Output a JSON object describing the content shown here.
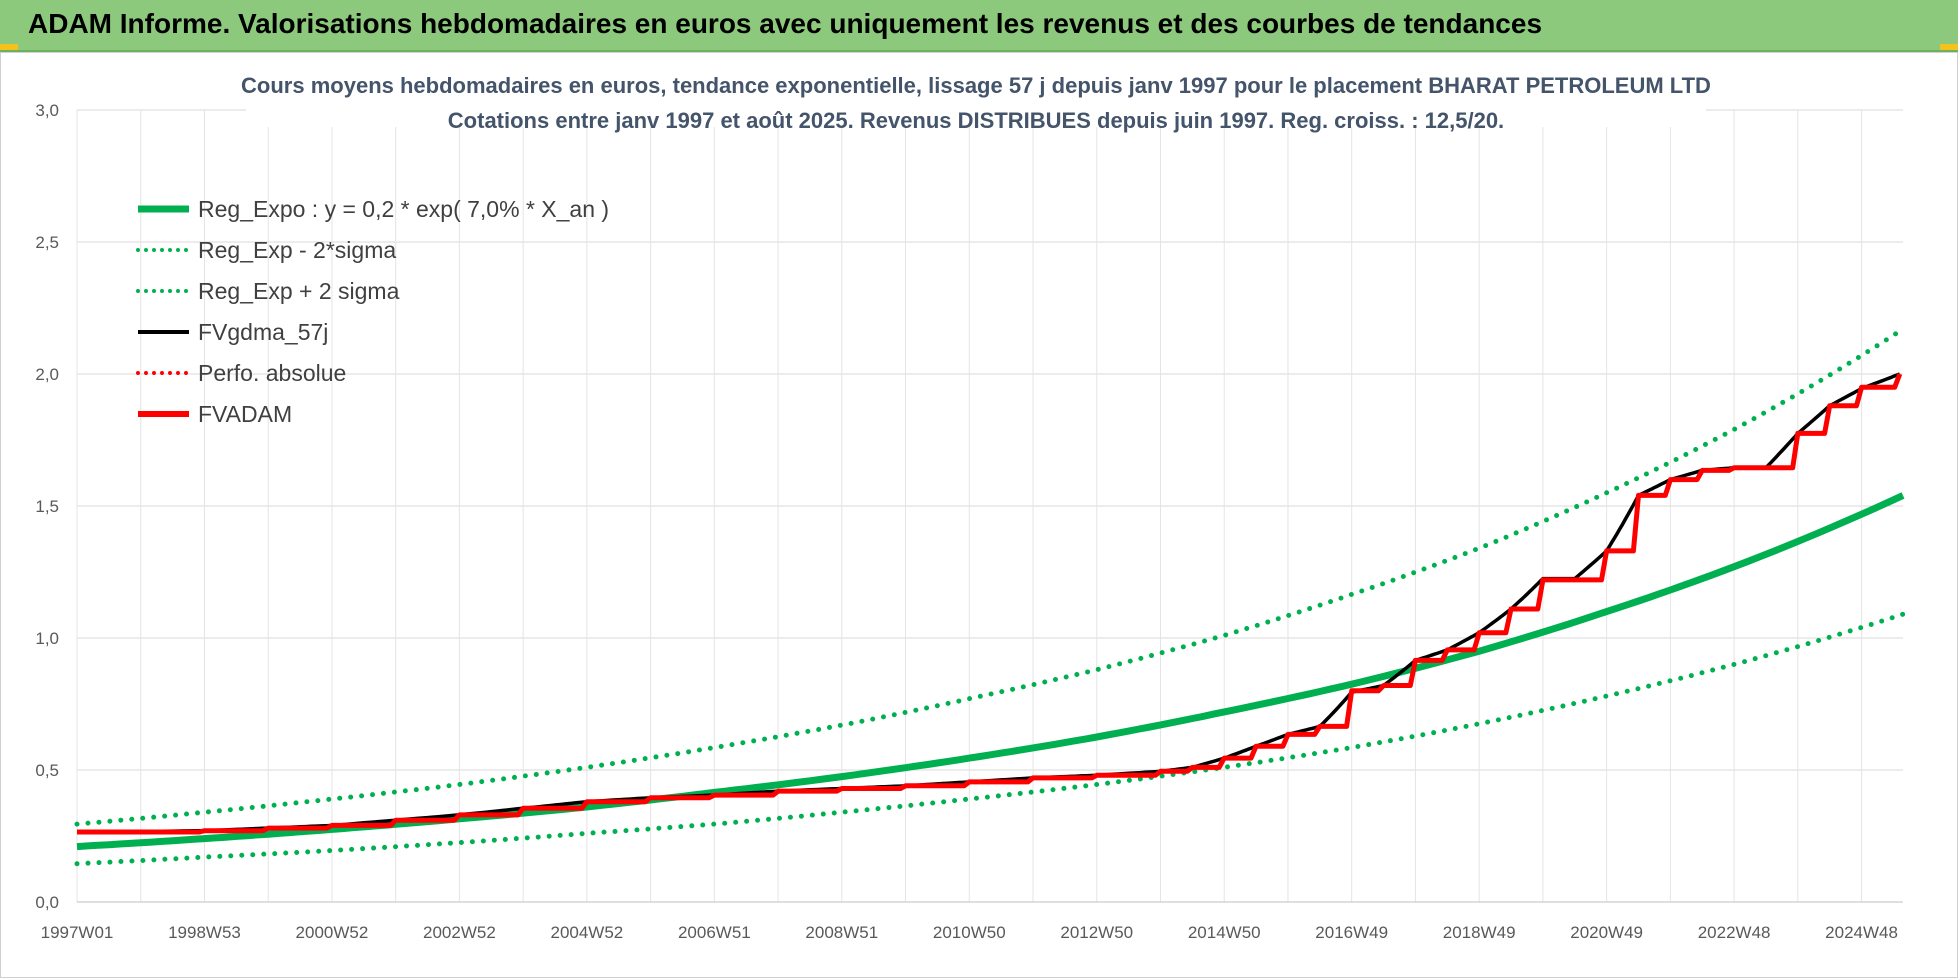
{
  "header": {
    "title": "ADAM Informe. Valorisations hebdomadaires en euros avec uniquement les revenus et des courbes de tendances"
  },
  "chart_data": {
    "type": "line",
    "title": "Cours moyens hebdomadaires en euros, tendance exponentielle, lissage 57 j depuis janv 1997  pour le placement BHARAT PETROLEUM LTD",
    "subtitle": "Cotations entre janv 1997 et août 2025.  Revenus DISTRIBUES depuis juin 1997.  Reg. croiss. : 12,5/20.",
    "xlabel": "",
    "ylabel": "",
    "x_range": [
      1997.0,
      2025.65
    ],
    "ylim": [
      0,
      3.0
    ],
    "y_ticks": [
      "0,0",
      "0,5",
      "1,0",
      "1,5",
      "2,0",
      "2,5",
      "3,0"
    ],
    "x_ticks": [
      {
        "label": "1997W01",
        "x": 1997.0
      },
      {
        "label": "1998W53",
        "x": 1999.0
      },
      {
        "label": "2000W52",
        "x": 2001.0
      },
      {
        "label": "2002W52",
        "x": 2003.0
      },
      {
        "label": "2004W52",
        "x": 2005.0
      },
      {
        "label": "2006W51",
        "x": 2007.0
      },
      {
        "label": "2008W51",
        "x": 2009.0
      },
      {
        "label": "2010W50",
        "x": 2011.0
      },
      {
        "label": "2012W50",
        "x": 2013.0
      },
      {
        "label": "2014W50",
        "x": 2015.0
      },
      {
        "label": "2016W49",
        "x": 2017.0
      },
      {
        "label": "2018W49",
        "x": 2019.0
      },
      {
        "label": "2020W49",
        "x": 2021.0
      },
      {
        "label": "2022W48",
        "x": 2023.0
      },
      {
        "label": "2024W48",
        "x": 2025.0
      }
    ],
    "grid": true,
    "legend_position": "top-left",
    "series": [
      {
        "name": "Reg_Expo : y = 0,2 * exp( 7,0% *  X_an )",
        "color": "#00b050",
        "style": "solid-thick",
        "x": [
          1997.0,
          1999.0,
          2001.0,
          2003.0,
          2005.0,
          2007.0,
          2009.0,
          2011.0,
          2013.0,
          2015.0,
          2017.0,
          2019.0,
          2021.0,
          2023.0,
          2025.65
        ],
        "y": [
          0.21,
          0.24,
          0.275,
          0.315,
          0.36,
          0.415,
          0.475,
          0.545,
          0.625,
          0.72,
          0.825,
          0.95,
          1.1,
          1.27,
          1.54
        ]
      },
      {
        "name": "Reg_Exp - 2*sigma",
        "color": "#00b050",
        "style": "dotted",
        "x": [
          1997.0,
          1999.0,
          2001.0,
          2003.0,
          2005.0,
          2007.0,
          2009.0,
          2011.0,
          2013.0,
          2015.0,
          2017.0,
          2019.0,
          2021.0,
          2023.0,
          2025.65
        ],
        "y": [
          0.145,
          0.17,
          0.195,
          0.225,
          0.26,
          0.295,
          0.34,
          0.39,
          0.445,
          0.51,
          0.585,
          0.675,
          0.78,
          0.9,
          1.09
        ]
      },
      {
        "name": "Reg_Exp + 2 sigma",
        "color": "#00b050",
        "style": "dotted",
        "x": [
          1997.0,
          1999.0,
          2001.0,
          2003.0,
          2005.0,
          2007.0,
          2009.0,
          2011.0,
          2013.0,
          2015.0,
          2017.0,
          2019.0,
          2021.0,
          2023.0,
          2025.65
        ],
        "y": [
          0.295,
          0.34,
          0.39,
          0.445,
          0.51,
          0.585,
          0.67,
          0.77,
          0.88,
          1.01,
          1.165,
          1.34,
          1.55,
          1.79,
          2.17
        ]
      },
      {
        "name": "FVgdma_57j",
        "color": "#000000",
        "style": "solid",
        "x": [
          1997.0,
          1999.0,
          2000.0,
          2001.0,
          2002.0,
          2003.0,
          2004.0,
          2005.0,
          2006.0,
          2007.0,
          2008.0,
          2009.0,
          2010.0,
          2011.0,
          2012.0,
          2013.0,
          2014.0,
          2014.5,
          2015.0,
          2015.5,
          2016.0,
          2016.5,
          2017.0,
          2017.5,
          2018.0,
          2018.5,
          2019.0,
          2019.5,
          2020.0,
          2020.5,
          2021.0,
          2021.5,
          2022.0,
          2022.5,
          2023.0,
          2023.5,
          2024.0,
          2024.5,
          2025.0,
          2025.6
        ],
        "y": [
          0.265,
          0.27,
          0.28,
          0.29,
          0.31,
          0.33,
          0.355,
          0.38,
          0.395,
          0.405,
          0.42,
          0.43,
          0.44,
          0.455,
          0.47,
          0.48,
          0.495,
          0.51,
          0.545,
          0.59,
          0.635,
          0.665,
          0.795,
          0.82,
          0.915,
          0.955,
          1.02,
          1.11,
          1.225,
          1.225,
          1.33,
          1.54,
          1.6,
          1.635,
          1.645,
          1.645,
          1.775,
          1.88,
          1.945,
          2.0
        ]
      },
      {
        "name": "Perfo. absolue",
        "color": "#ff0000",
        "style": "dotted",
        "x": [],
        "y": []
      },
      {
        "name": "FVADAM",
        "color": "#ff0000",
        "style": "step-thick",
        "x": [
          1997.0,
          1999.0,
          2000.0,
          2001.0,
          2002.0,
          2003.0,
          2004.0,
          2005.0,
          2006.0,
          2007.0,
          2008.0,
          2009.0,
          2010.0,
          2011.0,
          2012.0,
          2013.0,
          2014.0,
          2014.5,
          2015.0,
          2015.5,
          2016.0,
          2016.5,
          2017.0,
          2017.5,
          2018.0,
          2018.5,
          2019.0,
          2019.5,
          2020.0,
          2020.5,
          2021.0,
          2021.5,
          2022.0,
          2022.5,
          2023.0,
          2023.5,
          2024.0,
          2024.5,
          2025.0,
          2025.6
        ],
        "y": [
          0.265,
          0.27,
          0.28,
          0.29,
          0.31,
          0.33,
          0.355,
          0.38,
          0.395,
          0.405,
          0.42,
          0.43,
          0.44,
          0.455,
          0.47,
          0.48,
          0.495,
          0.51,
          0.545,
          0.59,
          0.635,
          0.665,
          0.8,
          0.82,
          0.915,
          0.955,
          1.02,
          1.11,
          1.22,
          1.22,
          1.33,
          1.54,
          1.6,
          1.635,
          1.645,
          1.645,
          1.775,
          1.88,
          1.95,
          2.0
        ]
      }
    ]
  }
}
